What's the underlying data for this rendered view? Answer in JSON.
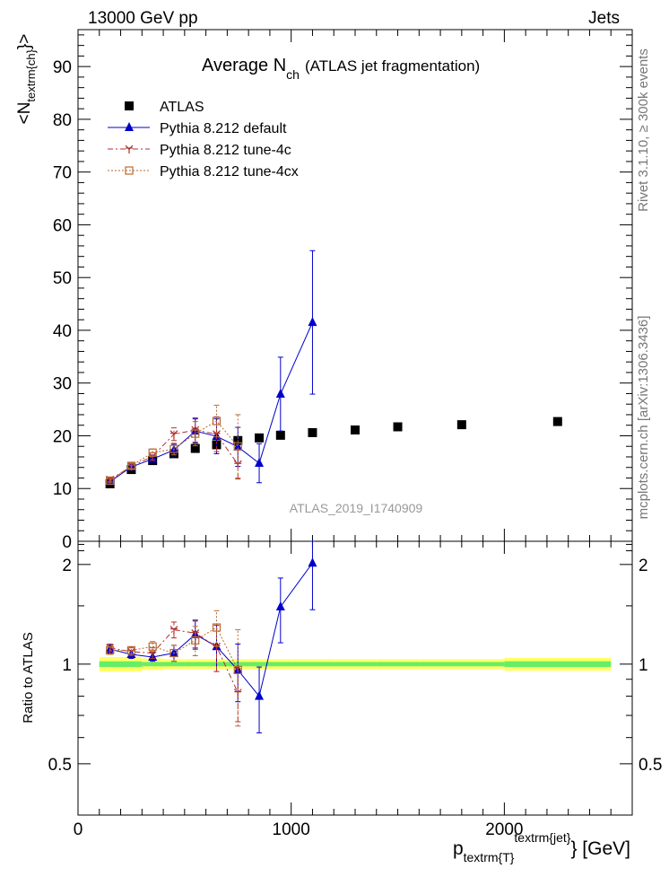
{
  "header": {
    "left": "13000 GeV pp",
    "right": "Jets"
  },
  "side_labels": {
    "rivet": "Rivet 3.1.10, ≥ 300k events",
    "mcplots": "mcplots.cern.ch [arXiv:1306.3436]"
  },
  "watermark": "ATLAS_2019_I1740909",
  "colors": {
    "atlas": "#000000",
    "default": "#0000cc",
    "tune4c": "#b03030",
    "tune4cx": "#b86a30",
    "band_inner": "#66ee66",
    "band_outer": "#ffff66"
  },
  "chart_data": [
    {
      "type": "scatter",
      "title": "Average N",
      "title_sub": "ch",
      "title_rest": "(ATLAS jet fragmentation)",
      "ylabel": "<N",
      "ylabel_sub": "textrm{ch}",
      "ylabel_end": "}>",
      "xlim": [
        0,
        2600
      ],
      "ylim": [
        0,
        97
      ],
      "yticks": [
        0,
        10,
        20,
        30,
        40,
        50,
        60,
        70,
        80,
        90
      ],
      "legend_position": "top-left",
      "series": [
        {
          "name": "ATLAS",
          "marker": "square",
          "x": [
            150,
            250,
            350,
            450,
            550,
            650,
            750,
            850,
            950,
            1100,
            1300,
            1500,
            1800,
            2250
          ],
          "y": [
            10.9,
            13.6,
            15.3,
            16.6,
            17.6,
            18.3,
            19.1,
            19.6,
            20.1,
            20.6,
            21.1,
            21.7,
            22.1,
            22.7
          ]
        },
        {
          "name": "Pythia 8.212 default",
          "marker": "triangle",
          "x": [
            150,
            250,
            350,
            450,
            550,
            650,
            750,
            850,
            950,
            1100
          ],
          "y": [
            11.3,
            14.1,
            15.6,
            17.3,
            20.9,
            19.9,
            17.9,
            14.8,
            27.9,
            41.5
          ],
          "err": [
            0.3,
            0.5,
            0.6,
            1.1,
            2.3,
            3.3,
            3.7,
            3.7,
            7.0,
            13.6
          ]
        },
        {
          "name": "Pythia 8.212 tune-4c",
          "marker": "star",
          "x": [
            150,
            250,
            350,
            450,
            550,
            650,
            750
          ],
          "y": [
            11.7,
            14.2,
            16.1,
            20.3,
            21.1,
            20.3,
            14.6
          ],
          "err": [
            0.3,
            0.5,
            0.7,
            1.2,
            2.3,
            3.3,
            2.8
          ]
        },
        {
          "name": "Pythia 8.212 tune-4cx",
          "marker": "open-square",
          "x": [
            150,
            250,
            350,
            450,
            550,
            650,
            750
          ],
          "y": [
            11.5,
            14.3,
            16.8,
            17.5,
            20.4,
            22.8,
            18.0
          ],
          "err": [
            0.3,
            0.5,
            0.7,
            1.1,
            2.3,
            3.0,
            6.0
          ]
        }
      ]
    },
    {
      "type": "scatter",
      "ylabel": "Ratio to ATLAS",
      "xlabel": "p",
      "xlabel_sub": "textrm{T}",
      "xlabel_sup": "textrm{jet}",
      "xlabel_unit": "} [GeV]",
      "xlim": [
        0,
        2600
      ],
      "xticks": [
        0,
        1000,
        2000
      ],
      "ylim": [
        0.35,
        2.35
      ],
      "yticks": [
        0.5,
        1,
        2
      ],
      "series": [
        {
          "name": "Pythia 8.212 default",
          "x": [
            150,
            250,
            350,
            450,
            550,
            650,
            750,
            850,
            950,
            1100
          ],
          "y": [
            1.11,
            1.07,
            1.05,
            1.08,
            1.23,
            1.13,
            0.96,
            0.8,
            1.49,
            2.02
          ],
          "err": [
            0.03,
            0.03,
            0.03,
            0.06,
            0.12,
            0.18,
            0.19,
            0.18,
            0.33,
            0.56
          ]
        },
        {
          "name": "Pythia 8.212 tune-4c",
          "x": [
            150,
            250,
            350,
            450,
            550,
            650,
            750
          ],
          "y": [
            1.12,
            1.09,
            1.08,
            1.27,
            1.24,
            1.13,
            0.82
          ],
          "err": [
            0.03,
            0.03,
            0.04,
            0.07,
            0.12,
            0.18,
            0.15
          ]
        },
        {
          "name": "Pythia 8.212 tune-4cx",
          "x": [
            150,
            250,
            350,
            450,
            550,
            650,
            750
          ],
          "y": [
            1.1,
            1.1,
            1.13,
            1.08,
            1.18,
            1.29,
            0.96
          ],
          "err": [
            0.03,
            0.03,
            0.04,
            0.06,
            0.12,
            0.16,
            0.31
          ]
        }
      ],
      "band": {
        "x": [
          100,
          200,
          300,
          400,
          500,
          600,
          700,
          800,
          900,
          1000,
          1200,
          1400,
          1600,
          2000,
          2500
        ],
        "inner": [
          0.02,
          0.02,
          0.015,
          0.015,
          0.015,
          0.015,
          0.015,
          0.015,
          0.015,
          0.015,
          0.015,
          0.015,
          0.015,
          0.02
        ],
        "outer": [
          0.05,
          0.05,
          0.04,
          0.035,
          0.035,
          0.035,
          0.035,
          0.035,
          0.035,
          0.035,
          0.035,
          0.035,
          0.035,
          0.045
        ]
      }
    }
  ]
}
